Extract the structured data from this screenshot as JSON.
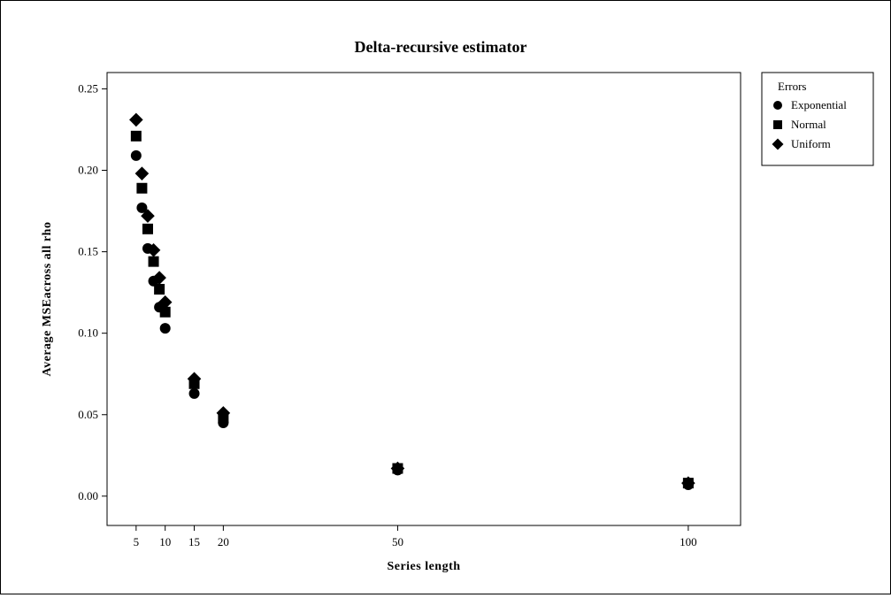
{
  "chart_data": {
    "type": "scatter",
    "title": "Delta-recursive estimator",
    "xlabel": "Series length",
    "ylabel": "Average MSEacross all rho",
    "xlim": [
      0,
      109
    ],
    "ylim": [
      -0.018,
      0.26
    ],
    "xticks": [
      5,
      10,
      15,
      20,
      50,
      100
    ],
    "xtick_labels": [
      "5",
      "10",
      "15",
      "20",
      "50",
      "100"
    ],
    "yticks": [
      0.0,
      0.05,
      0.1,
      0.15,
      0.2,
      0.25
    ],
    "ytick_labels": [
      "0.00",
      "0.05",
      "0.10",
      "0.15",
      "0.20",
      "0.25"
    ],
    "grid": false,
    "legend": {
      "title": "Errors",
      "placement": "outside-top-right"
    },
    "series": [
      {
        "name": "Exponential",
        "marker": "circle",
        "color": "#000000",
        "x": [
          5,
          6,
          7,
          8,
          9,
          10,
          15,
          20,
          50,
          100
        ],
        "y": [
          0.209,
          0.177,
          0.152,
          0.132,
          0.116,
          0.103,
          0.063,
          0.045,
          0.016,
          0.007
        ]
      },
      {
        "name": "Normal",
        "marker": "square",
        "color": "#000000",
        "x": [
          5,
          6,
          7,
          8,
          9,
          10,
          15,
          20,
          50,
          100
        ],
        "y": [
          0.221,
          0.189,
          0.164,
          0.144,
          0.127,
          0.113,
          0.069,
          0.048,
          0.017,
          0.008
        ]
      },
      {
        "name": "Uniform",
        "marker": "diamond",
        "color": "#000000",
        "x": [
          5,
          6,
          7,
          8,
          9,
          10,
          15,
          20,
          50,
          100
        ],
        "y": [
          0.231,
          0.198,
          0.172,
          0.151,
          0.134,
          0.119,
          0.072,
          0.051,
          0.017,
          0.008
        ]
      }
    ]
  }
}
